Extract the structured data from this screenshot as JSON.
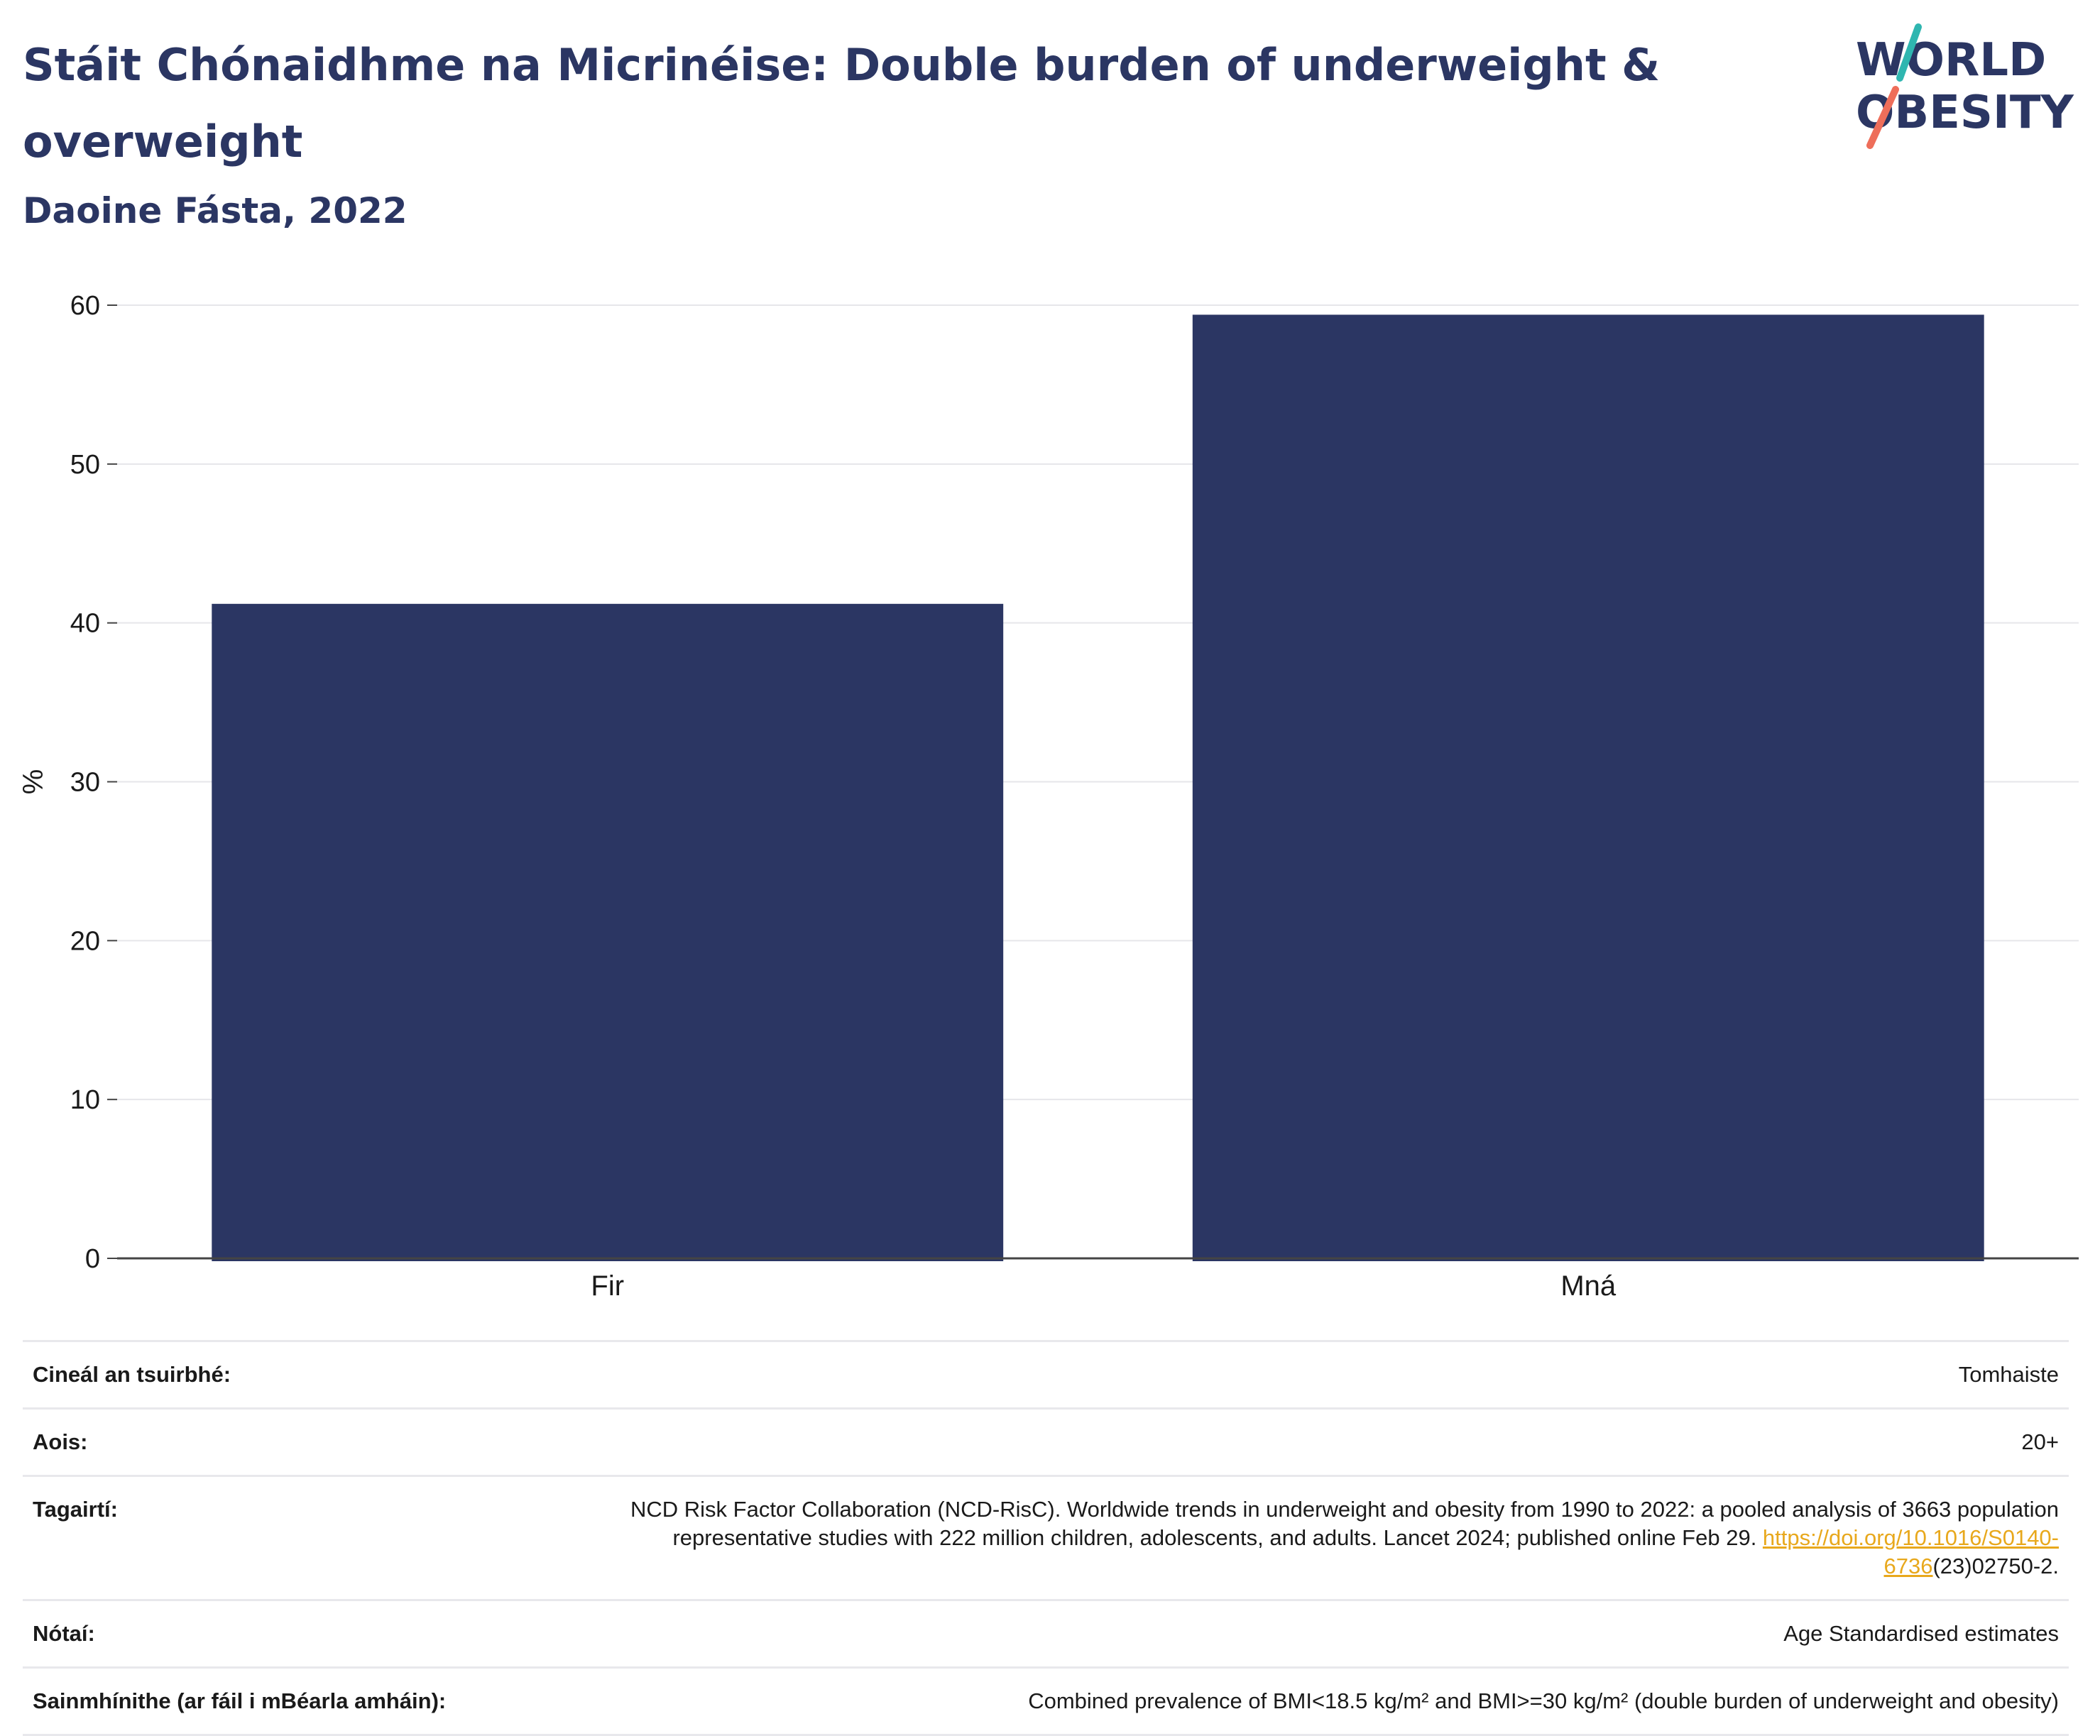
{
  "header": {
    "title": "Stáit Chónaidhme na Micrinéise: Double burden of underweight & overweight",
    "subtitle": "Daoine Fásta, 2022"
  },
  "logo": {
    "line1": "WORLD",
    "line2": "OBESITY",
    "accent_teal": "#2fb6b0",
    "accent_coral": "#ee6e5a"
  },
  "colors": {
    "bar": "#2b3663",
    "grid": "#e6e6ea",
    "axis": "#444444",
    "title": "#2b3663",
    "link": "#e8a81c"
  },
  "chart_data": {
    "type": "bar",
    "categories": [
      "Fir",
      "Mná"
    ],
    "values": [
      41.2,
      59.4
    ],
    "ylabel": "%",
    "ylim": [
      0,
      60
    ],
    "yticks": [
      0,
      10,
      20,
      30,
      40,
      50,
      60
    ],
    "grid": true
  },
  "info": {
    "rows": [
      {
        "label": "Cineál an tsuirbhé:",
        "value": "Tomhaiste"
      },
      {
        "label": "Aois:",
        "value": "20+"
      },
      {
        "label": "Tagairtí:",
        "value": "NCD Risk Factor Collaboration (NCD-RisC). Worldwide trends in underweight and obesity from 1990 to 2022: a pooled analysis of 3663 population representative studies with 222 million children, adolescents, and adults. Lancet 2024; published online Feb 29.",
        "link": "https://doi.org/10.1016/S0140-6736",
        "link_suffix": "(23)02750-2."
      },
      {
        "label": "Nótaí:",
        "value": "Age Standardised estimates"
      },
      {
        "label": "Sainmhínithe (ar fáil i mBéarla amháin):",
        "value": "Combined prevalence of BMI<18.5 kg/m² and BMI>=30 kg/m² (double burden of underweight and obesity)"
      }
    ]
  }
}
